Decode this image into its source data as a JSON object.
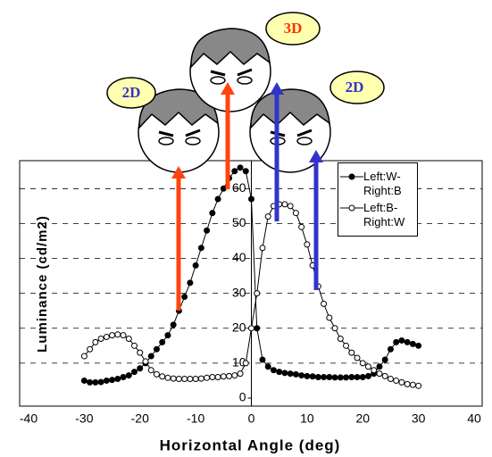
{
  "chart_data": {
    "type": "line",
    "x_label": "Horizontal Angle (deg)",
    "y_label": "Luminance (cd/m2)",
    "xlim": [
      -40,
      40
    ],
    "xticks": [
      -40,
      -30,
      -20,
      -10,
      0,
      10,
      20,
      30,
      40
    ],
    "ylim": [
      0,
      68
    ],
    "yticks": [
      0,
      10,
      20,
      30,
      40,
      50,
      60
    ],
    "grid": true,
    "legend": "upper right",
    "x": [
      -30,
      -29,
      -28,
      -27,
      -26,
      -25,
      -24,
      -23,
      -22,
      -21,
      -20,
      -19,
      -18,
      -17,
      -16,
      -15,
      -14,
      -13,
      -12,
      -11,
      -10,
      -9,
      -8,
      -7,
      -6,
      -5,
      -4,
      -3,
      -2,
      -1,
      0,
      1,
      2,
      3,
      4,
      5,
      6,
      7,
      8,
      9,
      10,
      11,
      12,
      13,
      14,
      15,
      16,
      17,
      18,
      19,
      20,
      21,
      22,
      23,
      24,
      25,
      26,
      27,
      28,
      29,
      30
    ],
    "series": [
      {
        "name": "Left:W-Right:B",
        "color": "#000000",
        "marker": "filled",
        "values": [
          5,
          4.5,
          4.5,
          4.6,
          5,
          5.2,
          5.5,
          6,
          6.5,
          7.5,
          8.5,
          10,
          12,
          14,
          16,
          18,
          21,
          25,
          29,
          33,
          38,
          43,
          48,
          53,
          57,
          60,
          63,
          65,
          66,
          65,
          57,
          20,
          11,
          9,
          8,
          7.5,
          7.2,
          7,
          6.8,
          6.5,
          6.3,
          6.2,
          6,
          6,
          6,
          5.9,
          5.9,
          5.9,
          6,
          6,
          6,
          6.3,
          7,
          9,
          11,
          14,
          16,
          16.5,
          16,
          15.5,
          15
        ]
      },
      {
        "name": "Left:B-Right:W",
        "color": "#000000",
        "marker": "open",
        "values": [
          12,
          14,
          16,
          17,
          17.5,
          18,
          18.2,
          18,
          17,
          15,
          13,
          10.5,
          8,
          6.8,
          6.2,
          5.8,
          5.6,
          5.5,
          5.5,
          5.5,
          5.5,
          5.6,
          5.8,
          6,
          6,
          6.2,
          6.3,
          6.5,
          7,
          10,
          20,
          30,
          43,
          52,
          55,
          55.5,
          55.5,
          55,
          53,
          49,
          44,
          38,
          32,
          27,
          23,
          20,
          17,
          15,
          13,
          11.5,
          10,
          9,
          8,
          7,
          6.3,
          5.5,
          5,
          4.5,
          4,
          3.8,
          3.5
        ]
      }
    ],
    "annotations": [
      "2D",
      "3D",
      "2D"
    ]
  }
}
